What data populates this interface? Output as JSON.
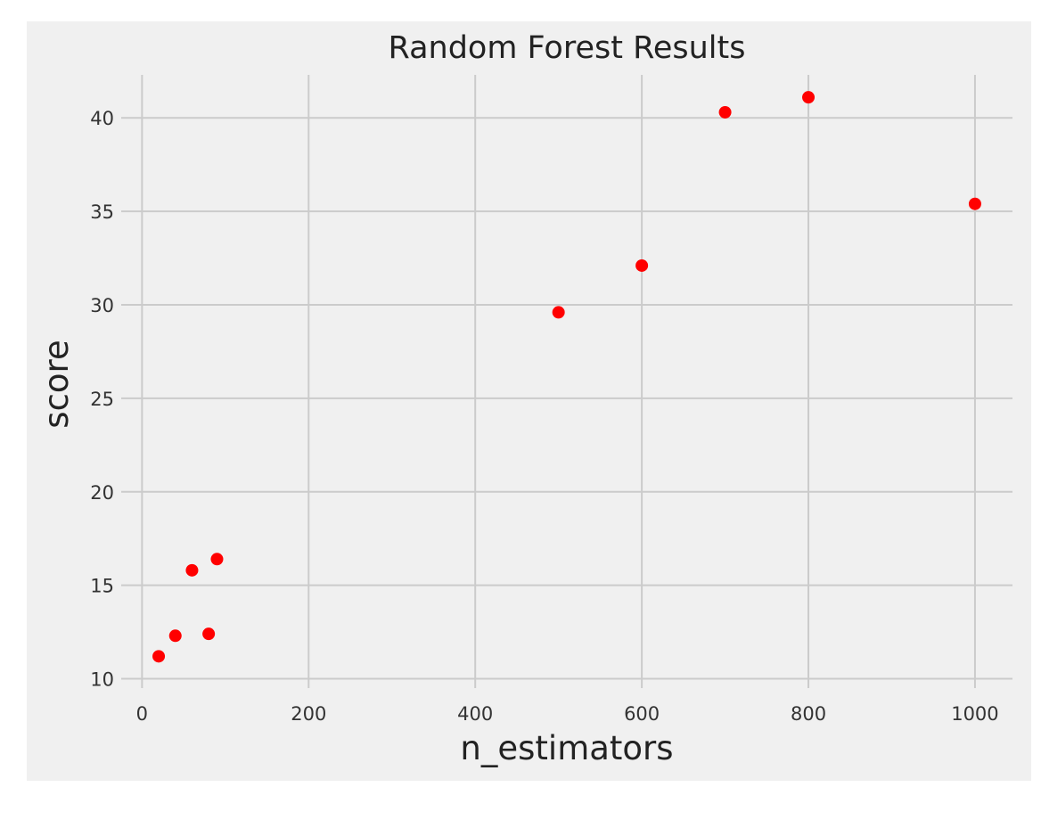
{
  "chart_data": {
    "type": "scatter",
    "title": "Random Forest Results",
    "xlabel": "n_estimators",
    "ylabel": "score",
    "xlim": [
      -25,
      1045
    ],
    "ylim": [
      9.5,
      42.3
    ],
    "xticks": [
      0,
      200,
      400,
      600,
      800,
      1000
    ],
    "yticks": [
      10,
      15,
      20,
      25,
      30,
      35,
      40
    ],
    "grid": true,
    "legend": "none",
    "marker_color": "#ff0000",
    "background_color": "#f0f0f0",
    "grid_color": "#cbcbcb",
    "points": [
      {
        "x": 20,
        "y": 11.2
      },
      {
        "x": 40,
        "y": 12.3
      },
      {
        "x": 60,
        "y": 15.8
      },
      {
        "x": 80,
        "y": 12.4
      },
      {
        "x": 90,
        "y": 16.4
      },
      {
        "x": 500,
        "y": 29.6
      },
      {
        "x": 600,
        "y": 32.1
      },
      {
        "x": 700,
        "y": 40.3
      },
      {
        "x": 800,
        "y": 41.1
      },
      {
        "x": 1000,
        "y": 35.4
      }
    ]
  }
}
